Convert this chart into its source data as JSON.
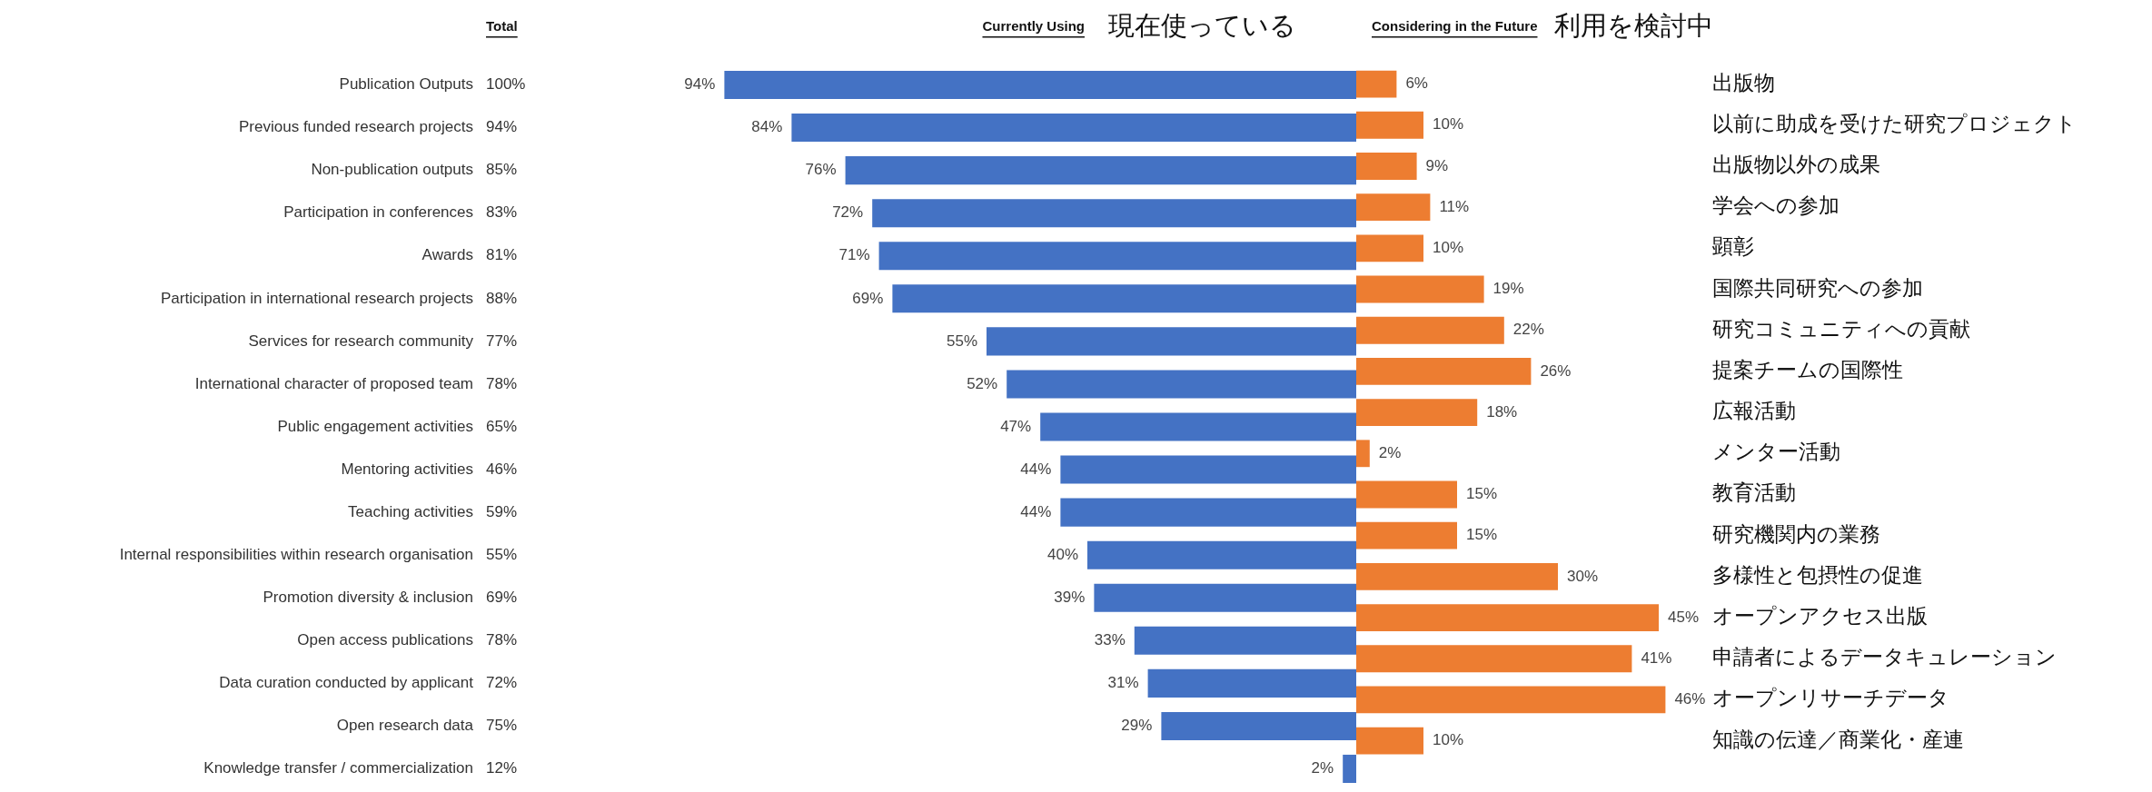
{
  "chart_data": [
    {
      "type": "bar",
      "orientation": "horizontal",
      "tick_labels": "y",
      "categories": [
        "Publication Outputs",
        "Previous funded research projects",
        "Non-publication outputs",
        "Participation in conferences",
        "Awards",
        "Participation in international research projects",
        "Services for research community",
        "International character of proposed team",
        "Public engagement activities",
        "Mentoring activities",
        "Teaching activities",
        "Internal responsibilities within research organisation",
        "Promotion diversity & inclusion",
        "Open access publications",
        "Data curation conducted by applicant",
        "Open research data",
        "Knowledge transfer / commercialization"
      ],
      "y2_categories": [
        "100%",
        "94%",
        "85%",
        "83%",
        "81%",
        "88%",
        "77%",
        "78%",
        "65%",
        "46%",
        "59%",
        "55%",
        "69%",
        "78%",
        "72%",
        "75%",
        "12%"
      ],
      "series": [
        {
          "color": "#4472c4",
          "values": [
            94,
            84,
            76,
            72,
            71,
            69,
            55,
            52,
            47,
            44,
            44,
            40,
            39,
            33,
            31,
            29,
            2
          ],
          "value_labels": [
            "94%",
            "84%",
            "76%",
            "72%",
            "71%",
            "69%",
            "55%",
            "52%",
            "47%",
            "44%",
            "44%",
            "40%",
            "39%",
            "33%",
            "31%",
            "29%",
            "2%"
          ]
        }
      ],
      "annotations": [
        "Total",
        "Currently Using",
        "現在使っている"
      ]
    },
    {
      "type": "bar",
      "orientation": "horizontal",
      "tick_labels": "y",
      "categories": [
        "出版物",
        "以前に助成を受けた研究プロジェクト",
        "出版物以外の成果",
        "学会への参加",
        "顕彰",
        "国際共同研究への参加",
        "研究コミュニティへの貢献",
        "提案チームの国際性",
        "広報活動",
        "メンター活動",
        "教育活動",
        "研究機関内の業務",
        "多様性と包摂性の促進",
        "オープンアクセス出版",
        "申請者によるデータキュレーション",
        "オープンリサーチデータ",
        "知識の伝達／商業化・産連"
      ],
      "series": [
        {
          "color": "#ed7d31",
          "values": [
            6,
            10,
            9,
            11,
            10,
            19,
            22,
            26,
            18,
            2,
            15,
            15,
            30,
            45,
            41,
            46,
            10
          ],
          "value_labels": [
            "6%",
            "10%",
            "9%",
            "11%",
            "10%",
            "19%",
            "22%",
            "26%",
            "18%",
            "2%",
            "15%",
            "15%",
            "30%",
            "45%",
            "41%",
            "46%",
            "10%"
          ]
        }
      ],
      "annotations": [
        "Considering in the Future",
        "利用を検討中"
      ]
    }
  ]
}
